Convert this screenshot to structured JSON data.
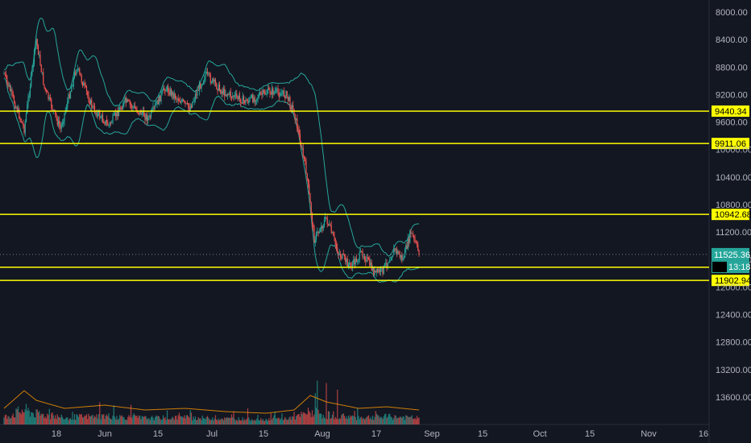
{
  "chart_data": {
    "type": "candlestick",
    "price_axis": {
      "inverted": true,
      "range": [
        7880,
        13880
      ],
      "ticks": [
        "8000.00",
        "8400.00",
        "8800.00",
        "9200.00",
        "9600.00",
        "10000.00",
        "10400.00",
        "10800.00",
        "11200.00",
        "11600.00",
        "12000.00",
        "12400.00",
        "12800.00",
        "13200.00",
        "13600.00"
      ]
    },
    "time_axis": {
      "ticks": [
        "18",
        "Jun",
        "15",
        "Jul",
        "15",
        "Aug",
        "17",
        "Sep",
        "15",
        "Oct",
        "15",
        "Nov",
        "16"
      ]
    },
    "horizontal_levels": [
      {
        "value": 9440.34,
        "label": "9440.34"
      },
      {
        "value": 9911.06,
        "label": "9911.06"
      },
      {
        "value": 10942.68,
        "label": "10942.68"
      },
      {
        "value": 11710.89,
        "label": "11710.89"
      },
      {
        "value": 11902.94,
        "label": "11902.94"
      }
    ],
    "last_price": {
      "value": 11525.36,
      "label": "11525.36",
      "countdown": "13:18"
    },
    "price_path": [
      {
        "day": 0,
        "price": 8900
      },
      {
        "day": 5,
        "price": 9700
      },
      {
        "day": 8,
        "price": 8400
      },
      {
        "day": 10,
        "price": 9100
      },
      {
        "day": 14,
        "price": 9700
      },
      {
        "day": 18,
        "price": 8800
      },
      {
        "day": 22,
        "price": 9400
      },
      {
        "day": 26,
        "price": 9650
      },
      {
        "day": 30,
        "price": 9300
      },
      {
        "day": 36,
        "price": 9550
      },
      {
        "day": 40,
        "price": 9100
      },
      {
        "day": 46,
        "price": 9400
      },
      {
        "day": 50,
        "price": 8900
      },
      {
        "day": 54,
        "price": 9150
      },
      {
        "day": 60,
        "price": 9300
      },
      {
        "day": 66,
        "price": 9150
      },
      {
        "day": 70,
        "price": 9200
      },
      {
        "day": 72,
        "price": 9450
      },
      {
        "day": 75,
        "price": 10300
      },
      {
        "day": 77,
        "price": 11300
      },
      {
        "day": 80,
        "price": 11000
      },
      {
        "day": 83,
        "price": 11500
      },
      {
        "day": 86,
        "price": 11700
      },
      {
        "day": 89,
        "price": 11500
      },
      {
        "day": 92,
        "price": 11800
      },
      {
        "day": 94,
        "price": 11750
      },
      {
        "day": 97,
        "price": 11450
      },
      {
        "day": 99,
        "price": 11600
      },
      {
        "day": 101,
        "price": 11200
      },
      {
        "day": 103,
        "price": 11500
      }
    ],
    "volume_profile": [
      {
        "day": 0,
        "level": 0.35
      },
      {
        "day": 5,
        "level": 0.9
      },
      {
        "day": 8,
        "level": 0.6
      },
      {
        "day": 15,
        "level": 0.35
      },
      {
        "day": 25,
        "level": 0.45
      },
      {
        "day": 35,
        "level": 0.3
      },
      {
        "day": 45,
        "level": 0.35
      },
      {
        "day": 55,
        "level": 0.25
      },
      {
        "day": 65,
        "level": 0.2
      },
      {
        "day": 72,
        "level": 0.3
      },
      {
        "day": 76,
        "level": 0.75
      },
      {
        "day": 80,
        "level": 0.55
      },
      {
        "day": 88,
        "level": 0.35
      },
      {
        "day": 95,
        "level": 0.4
      },
      {
        "day": 103,
        "level": 0.3
      }
    ],
    "grid": false,
    "colors": {
      "background": "#131722",
      "level_line": "#ffff00",
      "bands": "#26a69a",
      "up": "#26a69a",
      "down": "#ef5350",
      "last_price_tag": "#26a69a",
      "axis_text": "#b2b5be"
    }
  }
}
